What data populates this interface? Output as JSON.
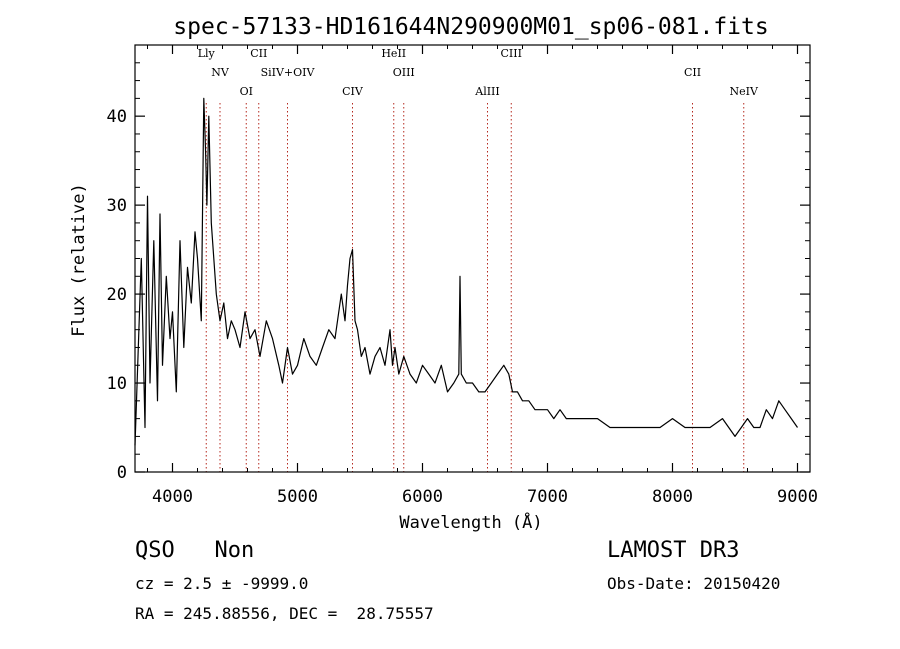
{
  "chart_data": {
    "type": "line",
    "title": "spec-57133-HD161644N290900M01_sp06-081.fits",
    "xlabel": "Wavelength (Å)",
    "ylabel": "Flux (relative)",
    "xlim": [
      3700,
      9100
    ],
    "ylim": [
      0,
      48
    ],
    "x_ticks": [
      4000,
      5000,
      6000,
      7000,
      8000,
      9000
    ],
    "y_ticks": [
      0,
      10,
      20,
      30,
      40
    ],
    "grid": false,
    "legend": "none",
    "series": [
      {
        "x": [
          3700,
          3750,
          3780,
          3800,
          3820,
          3850,
          3880,
          3900,
          3920,
          3950,
          3980,
          4000,
          4030,
          4060,
          4090,
          4120,
          4150,
          4180,
          4200,
          4230,
          4250,
          4265,
          4275,
          4290,
          4310,
          4330,
          4350,
          4380,
          4410,
          4440,
          4470,
          4500,
          4540,
          4580,
          4620,
          4660,
          4700,
          4750,
          4800,
          4850,
          4880,
          4920,
          4960,
          5000,
          5050,
          5100,
          5150,
          5200,
          5250,
          5300,
          5350,
          5380,
          5400,
          5420,
          5440,
          5460,
          5480,
          5510,
          5540,
          5580,
          5620,
          5660,
          5700,
          5740,
          5760,
          5780,
          5810,
          5850,
          5900,
          5950,
          6000,
          6050,
          6100,
          6150,
          6200,
          6250,
          6290,
          6300,
          6310,
          6350,
          6400,
          6450,
          6500,
          6550,
          6600,
          6650,
          6690,
          6720,
          6760,
          6800,
          6850,
          6900,
          6950,
          7000,
          7050,
          7100,
          7150,
          7200,
          7300,
          7400,
          7500,
          7600,
          7700,
          7800,
          7900,
          8000,
          8100,
          8200,
          8300,
          8400,
          8500,
          8550,
          8600,
          8650,
          8700,
          8750,
          8800,
          8850,
          8900,
          8950,
          9000
        ],
        "y": [
          3,
          24,
          5,
          31,
          10,
          26,
          8,
          29,
          12,
          22,
          15,
          18,
          9,
          26,
          14,
          23,
          19,
          27,
          24,
          17,
          42,
          36,
          30,
          40,
          28,
          24,
          20,
          17,
          19,
          15,
          17,
          16,
          14,
          18,
          15,
          16,
          13,
          17,
          15,
          12,
          10,
          14,
          11,
          12,
          15,
          13,
          12,
          14,
          16,
          15,
          20,
          17,
          21,
          24,
          25,
          17,
          16,
          13,
          14,
          11,
          13,
          14,
          12,
          16,
          12,
          14,
          11,
          13,
          11,
          10,
          12,
          11,
          10,
          12,
          9,
          10,
          11,
          22,
          11,
          10,
          10,
          9,
          9,
          10,
          11,
          12,
          11,
          9,
          9,
          8,
          8,
          7,
          7,
          7,
          6,
          7,
          6,
          6,
          6,
          6,
          5,
          5,
          5,
          5,
          5,
          6,
          5,
          5,
          5,
          6,
          4,
          5,
          6,
          5,
          5,
          7,
          6,
          8,
          7,
          6,
          5
        ]
      }
    ],
    "line_markers": [
      {
        "label": "Lly",
        "wavelength": 4270
      },
      {
        "label": "NV",
        "wavelength": 4380
      },
      {
        "label": "OI",
        "wavelength": 4590
      },
      {
        "label": "CII",
        "wavelength": 4690
      },
      {
        "label": "SiIV+OIV",
        "wavelength": 4920
      },
      {
        "label": "CIV",
        "wavelength": 5440
      },
      {
        "label": "HeII",
        "wavelength": 5770
      },
      {
        "label": "OIII",
        "wavelength": 5850
      },
      {
        "label": "AlIII",
        "wavelength": 6520
      },
      {
        "label": "CIII",
        "wavelength": 6710
      },
      {
        "label": "CII",
        "wavelength": 8160
      },
      {
        "label": "NeIV",
        "wavelength": 8570
      }
    ]
  },
  "info": {
    "class_line": "QSO   Non",
    "cz_line": "cz = 2.5 ± -9999.0",
    "radec_line": "RA = 245.88556, DEC =  28.75557",
    "survey": "LAMOST DR3",
    "obs_date": "Obs-Date: 20150420"
  }
}
